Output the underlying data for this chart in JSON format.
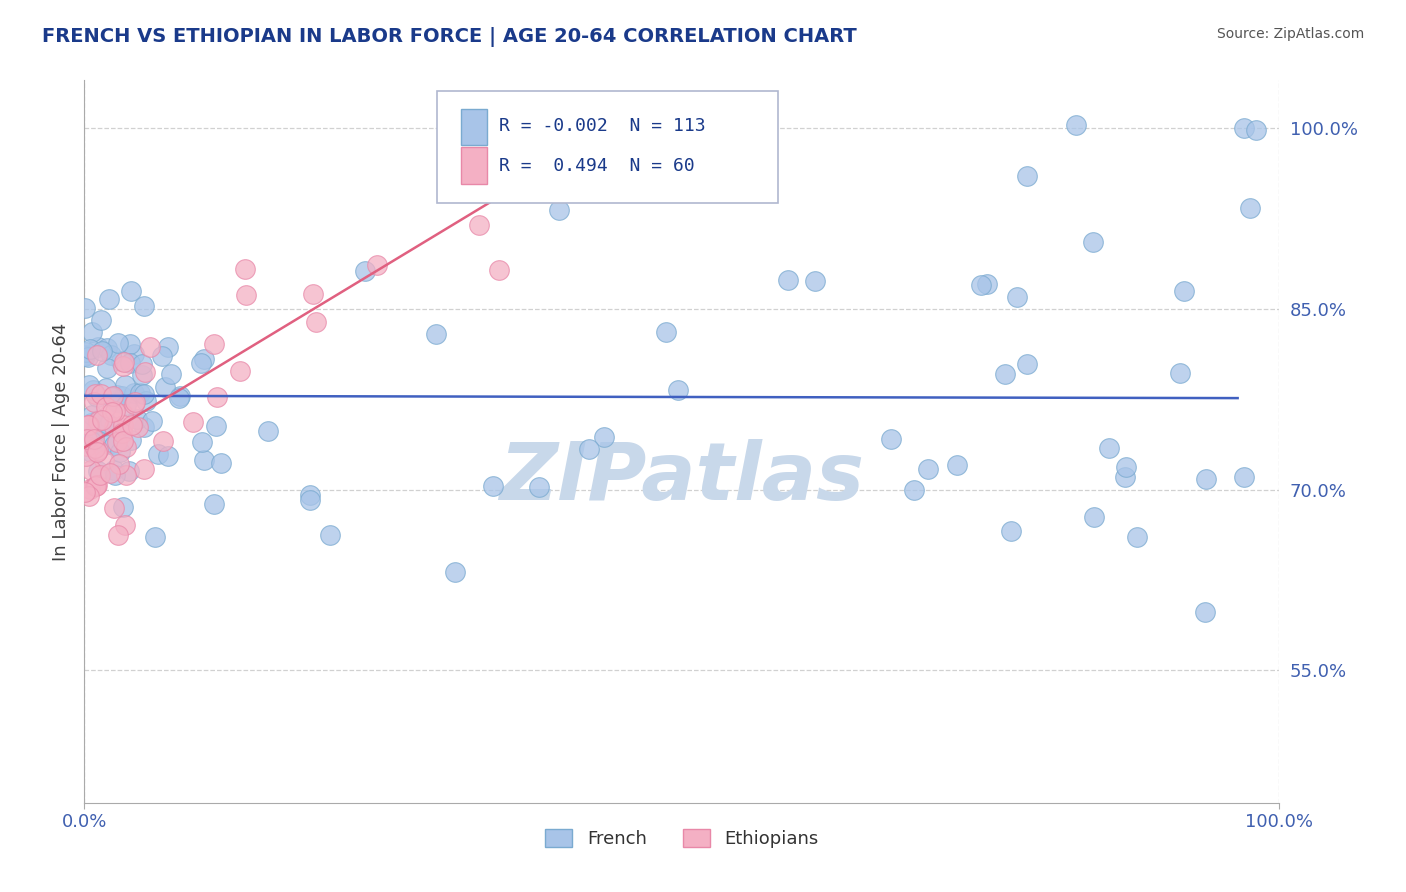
{
  "title": "FRENCH VS ETHIOPIAN IN LABOR FORCE | AGE 20-64 CORRELATION CHART",
  "source": "Source: ZipAtlas.com",
  "ylabel": "In Labor Force | Age 20-64",
  "ytick_labels": [
    "55.0%",
    "70.0%",
    "85.0%",
    "100.0%"
  ],
  "ytick_values": [
    0.55,
    0.7,
    0.85,
    1.0
  ],
  "legend_R_french": "-0.002",
  "legend_N_french": "113",
  "legend_R_ethiopian": "0.494",
  "legend_N_ethiopian": "60",
  "french_marker_color": "#a8c4e8",
  "french_marker_edge": "#7aaad0",
  "ethiopian_marker_color": "#f4b0c4",
  "ethiopian_marker_edge": "#e888a8",
  "french_trend_color": "#4060c0",
  "ethiopian_trend_color": "#e06080",
  "legend_french_fill": "#a8c4e8",
  "legend_ethiopian_fill": "#f4b0c4",
  "watermark": "ZIPatlas",
  "watermark_color": "#c8d8ea",
  "background_color": "#ffffff",
  "grid_color": "#cccccc",
  "xlim": [
    0.0,
    1.0
  ],
  "ylim": [
    0.44,
    1.04
  ],
  "french_trend_y_intercept": 0.778,
  "french_trend_slope": -0.002,
  "ethiopian_trend_y_intercept": 0.735,
  "ethiopian_trend_slope": 0.6,
  "title_color": "#1a3a8a",
  "source_color": "#555555",
  "tick_color": "#4060b0",
  "ylabel_color": "#404040"
}
